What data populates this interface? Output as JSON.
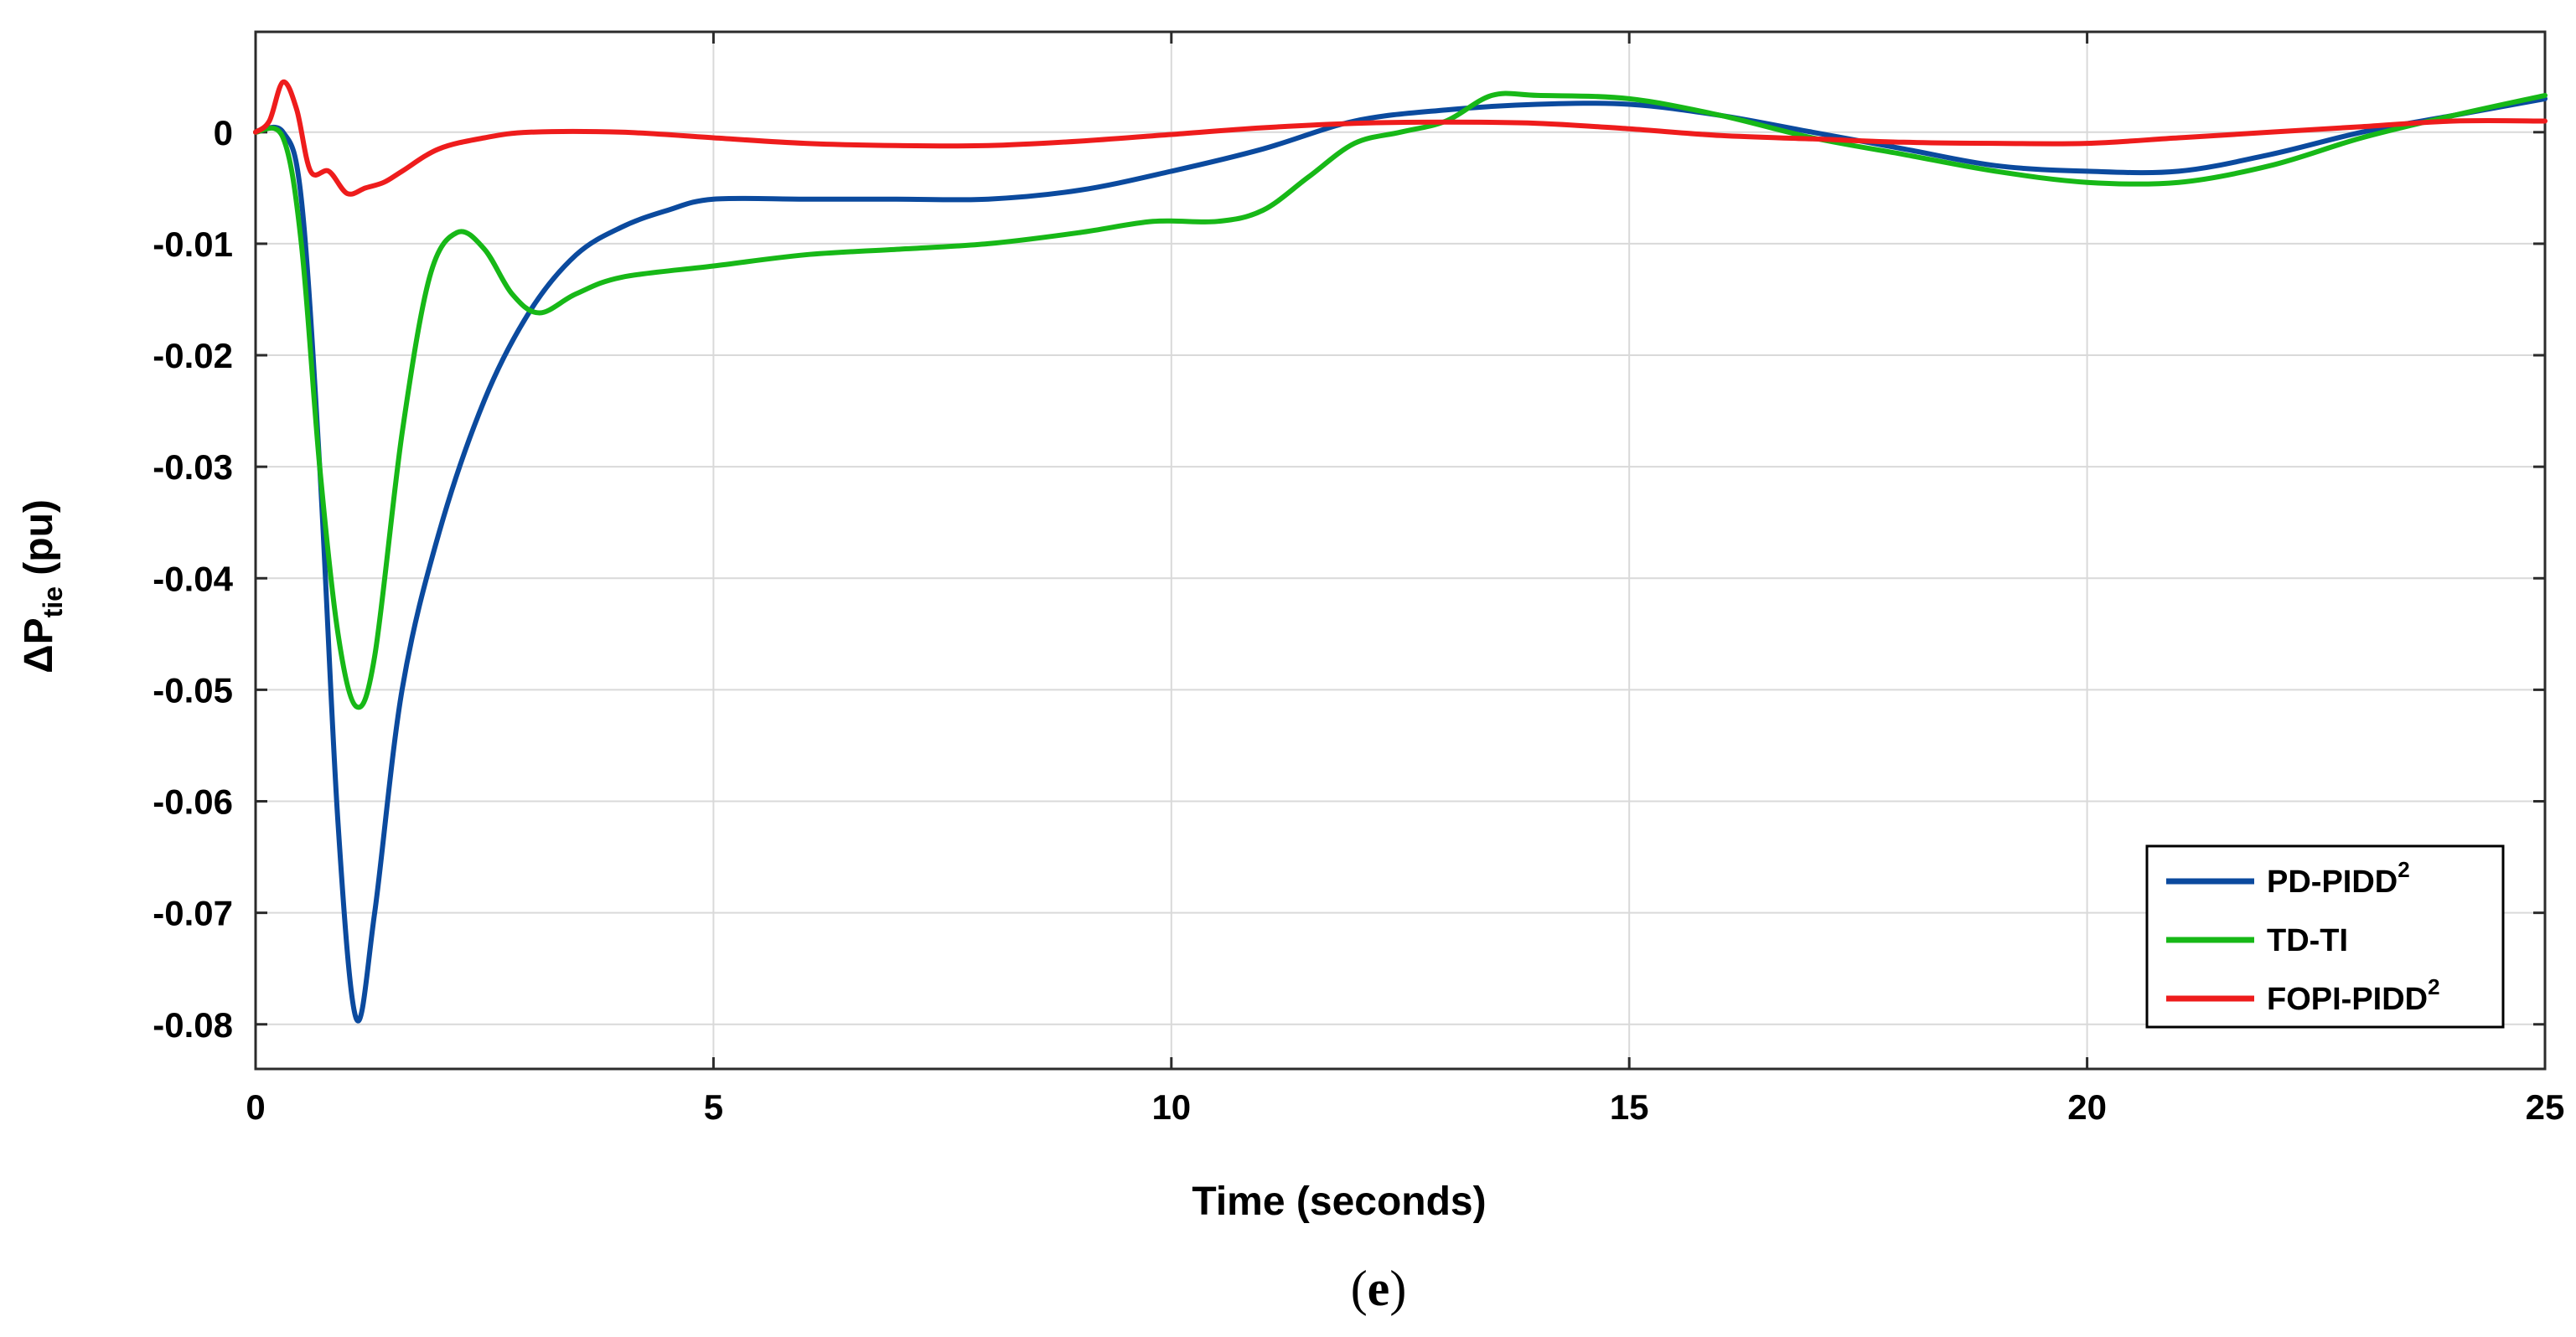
{
  "chart_data": {
    "type": "line",
    "title": "",
    "xlabel": "Time (seconds)",
    "ylabel": {
      "main": "ΔP",
      "subscript": "tie",
      "unit": " (pu)"
    },
    "xlim": [
      0,
      25
    ],
    "ylim": [
      -0.084,
      0.009
    ],
    "xticks": [
      0,
      5,
      10,
      15,
      20,
      25
    ],
    "xtick_labels": [
      "0",
      "5",
      "10",
      "15",
      "20",
      "25"
    ],
    "yticks": [
      0,
      -0.01,
      -0.02,
      -0.03,
      -0.04,
      -0.05,
      -0.06,
      -0.07,
      -0.08
    ],
    "ytick_labels": [
      "0",
      "-0.01",
      "-0.02",
      "-0.03",
      "-0.04",
      "-0.05",
      "-0.06",
      "-0.07",
      "-0.08"
    ],
    "grid": true,
    "legend_position": "bottom-right",
    "series": [
      {
        "name": "PD-PIDD",
        "name_sup": "2",
        "color": "#0b4a9e",
        "points": [
          [
            0,
            0
          ],
          [
            0.3,
            0
          ],
          [
            0.5,
            -0.006
          ],
          [
            0.7,
            -0.03
          ],
          [
            0.9,
            -0.062
          ],
          [
            1.1,
            -0.0795
          ],
          [
            1.3,
            -0.07
          ],
          [
            1.6,
            -0.05
          ],
          [
            2.0,
            -0.036
          ],
          [
            2.5,
            -0.024
          ],
          [
            3.0,
            -0.016
          ],
          [
            3.5,
            -0.011
          ],
          [
            4.0,
            -0.0085
          ],
          [
            4.5,
            -0.007
          ],
          [
            5.0,
            -0.006
          ],
          [
            6.0,
            -0.006
          ],
          [
            7.0,
            -0.006
          ],
          [
            8.0,
            -0.006
          ],
          [
            9.0,
            -0.0052
          ],
          [
            10.0,
            -0.0035
          ],
          [
            11.0,
            -0.0015
          ],
          [
            12.0,
            0.001
          ],
          [
            13.0,
            0.002
          ],
          [
            14.0,
            0.0025
          ],
          [
            15.0,
            0.0025
          ],
          [
            16.0,
            0.0015
          ],
          [
            17.0,
            0
          ],
          [
            18.0,
            -0.0015
          ],
          [
            19.0,
            -0.003
          ],
          [
            20.0,
            -0.0035
          ],
          [
            21.0,
            -0.0035
          ],
          [
            22.0,
            -0.002
          ],
          [
            23.0,
            0
          ],
          [
            24.0,
            0.0015
          ],
          [
            25.0,
            0.003
          ]
        ]
      },
      {
        "name": "TD-TI",
        "name_sup": "",
        "color": "#17b817",
        "points": [
          [
            0,
            0
          ],
          [
            0.3,
            -0.0005
          ],
          [
            0.5,
            -0.01
          ],
          [
            0.7,
            -0.03
          ],
          [
            0.9,
            -0.045
          ],
          [
            1.1,
            -0.0515
          ],
          [
            1.3,
            -0.047
          ],
          [
            1.6,
            -0.027
          ],
          [
            1.9,
            -0.013
          ],
          [
            2.2,
            -0.009
          ],
          [
            2.5,
            -0.0105
          ],
          [
            2.8,
            -0.0145
          ],
          [
            3.1,
            -0.0162
          ],
          [
            3.5,
            -0.0145
          ],
          [
            4.0,
            -0.013
          ],
          [
            5.0,
            -0.012
          ],
          [
            6.0,
            -0.011
          ],
          [
            7.0,
            -0.0105
          ],
          [
            8.0,
            -0.01
          ],
          [
            9.0,
            -0.009
          ],
          [
            9.8,
            -0.008
          ],
          [
            10.5,
            -0.008
          ],
          [
            11.0,
            -0.007
          ],
          [
            11.5,
            -0.004
          ],
          [
            12.0,
            -0.001
          ],
          [
            12.5,
            0
          ],
          [
            13.0,
            0.001
          ],
          [
            13.5,
            0.0033
          ],
          [
            14.0,
            0.0033
          ],
          [
            15.0,
            0.003
          ],
          [
            16.0,
            0.0015
          ],
          [
            17.0,
            -0.0005
          ],
          [
            18.0,
            -0.002
          ],
          [
            19.0,
            -0.0035
          ],
          [
            20.0,
            -0.0045
          ],
          [
            21.0,
            -0.0045
          ],
          [
            22.0,
            -0.003
          ],
          [
            23.0,
            -0.0005
          ],
          [
            24.0,
            0.0015
          ],
          [
            25.0,
            0.0033
          ]
        ]
      },
      {
        "name": "FOPI-PIDD",
        "name_sup": "2",
        "color": "#ee1c1c",
        "points": [
          [
            0,
            0
          ],
          [
            0.15,
            0.001
          ],
          [
            0.3,
            0.0045
          ],
          [
            0.45,
            0.002
          ],
          [
            0.6,
            -0.0035
          ],
          [
            0.8,
            -0.0035
          ],
          [
            1.0,
            -0.0055
          ],
          [
            1.2,
            -0.005
          ],
          [
            1.4,
            -0.0045
          ],
          [
            1.6,
            -0.0035
          ],
          [
            2.0,
            -0.0015
          ],
          [
            2.5,
            -0.0005
          ],
          [
            3.0,
            0
          ],
          [
            4.0,
            0
          ],
          [
            5.0,
            -0.0005
          ],
          [
            6.0,
            -0.001
          ],
          [
            7.0,
            -0.0012
          ],
          [
            8.0,
            -0.0012
          ],
          [
            9.0,
            -0.0008
          ],
          [
            10.0,
            -0.0002
          ],
          [
            11.0,
            0.0004
          ],
          [
            12.0,
            0.0008
          ],
          [
            13.0,
            0.0009
          ],
          [
            14.0,
            0.0008
          ],
          [
            15.0,
            0.0003
          ],
          [
            16.0,
            -0.0003
          ],
          [
            17.0,
            -0.0006
          ],
          [
            18.0,
            -0.0009
          ],
          [
            19.0,
            -0.001
          ],
          [
            20.0,
            -0.001
          ],
          [
            21.0,
            -0.0005
          ],
          [
            22.0,
            0
          ],
          [
            23.0,
            0.0005
          ],
          [
            24.0,
            0.001
          ],
          [
            25.0,
            0.001
          ]
        ]
      }
    ]
  },
  "caption": "(e)"
}
